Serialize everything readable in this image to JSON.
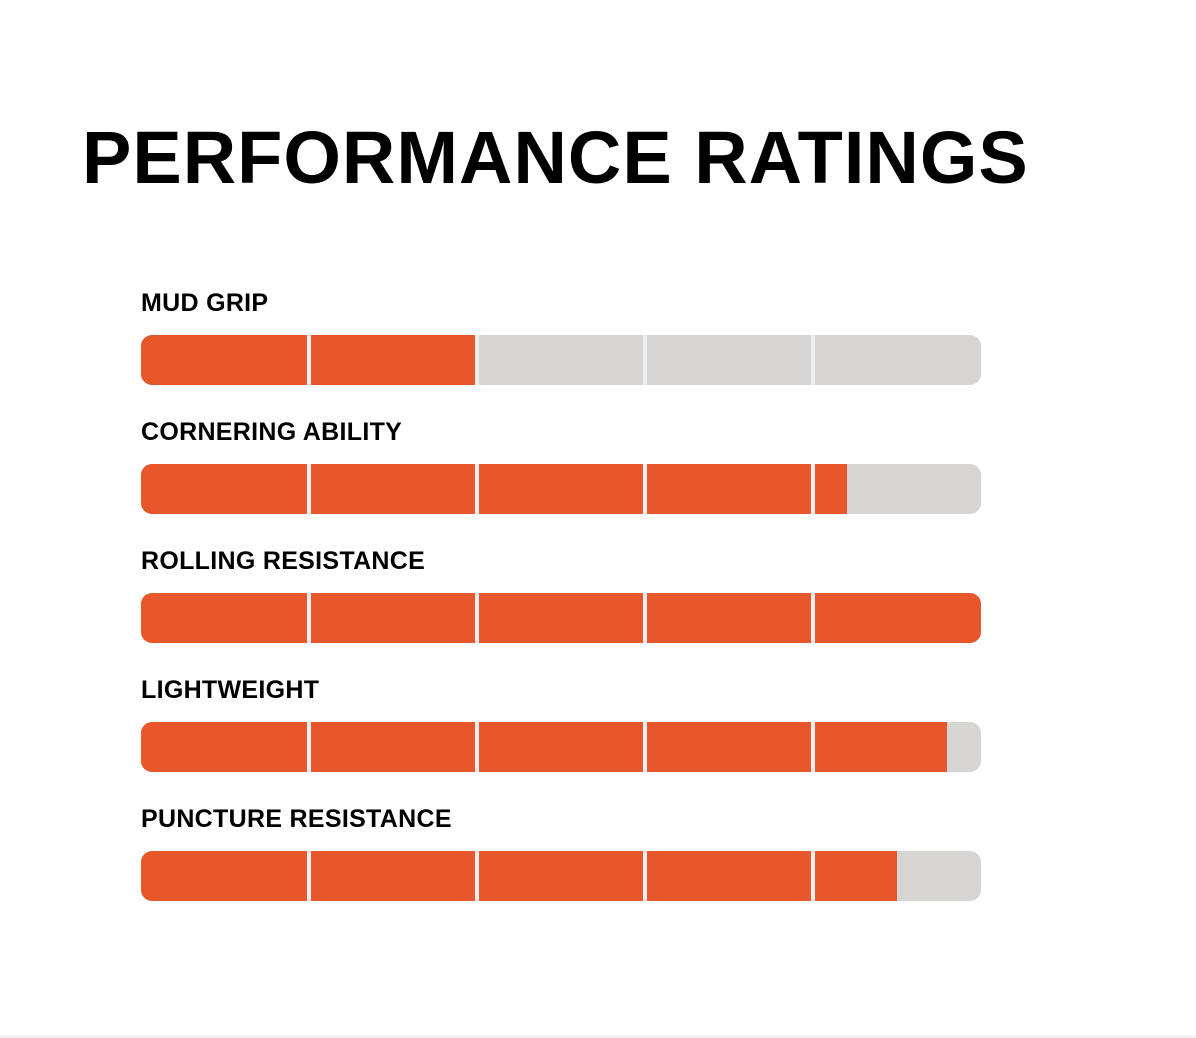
{
  "header": {
    "title": "PERFORMANCE RATINGS"
  },
  "colors": {
    "fill": "#e8572c",
    "track": "#d6d5d3",
    "divider": "#eeeeee",
    "text": "#000000"
  },
  "segments_per_bar": 5,
  "ratings": [
    {
      "label": "MUD GRIP",
      "value": 0.4
    },
    {
      "label": "CORNERING ABILITY",
      "value": 0.84
    },
    {
      "label": "ROLLING RESISTANCE",
      "value": 1.0
    },
    {
      "label": "LIGHTWEIGHT",
      "value": 0.96
    },
    {
      "label": "PUNCTURE RESISTANCE",
      "value": 0.9
    }
  ]
}
